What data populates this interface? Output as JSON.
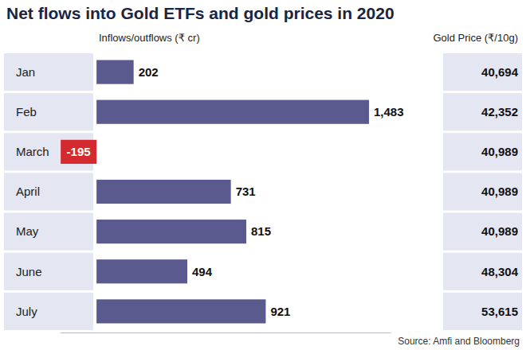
{
  "chart_data": {
    "type": "bar",
    "title": "Net flows into Gold ETFs and gold prices in 2020",
    "orientation": "horizontal",
    "categories": [
      "Jan",
      "Feb",
      "March",
      "April",
      "May",
      "June",
      "July"
    ],
    "series": [
      {
        "name": "Inflows/outflows (₹ cr)",
        "values": [
          202,
          1483,
          -195,
          731,
          815,
          494,
          921
        ],
        "value_labels": [
          "202",
          "1,483",
          "-195",
          "731",
          "815",
          "494",
          "921"
        ],
        "colors": [
          "#5b5a8f",
          "#5b5a8f",
          "#d42a2f",
          "#5b5a8f",
          "#5b5a8f",
          "#5b5a8f",
          "#5b5a8f"
        ]
      }
    ],
    "gold_price": {
      "name": "Gold Price (₹/10g)",
      "values": [
        40694,
        42352,
        40989,
        40989,
        40989,
        48304,
        53615
      ],
      "value_labels": [
        "40,694",
        "42,352",
        "40,989",
        "40,989",
        "40,989",
        "48,304",
        "53,615"
      ]
    },
    "xlim": [
      -200,
      1600
    ],
    "xticks": [],
    "data_labels": true,
    "tick_labels": "y",
    "source": "Source: Amfi and Bloomberg"
  }
}
